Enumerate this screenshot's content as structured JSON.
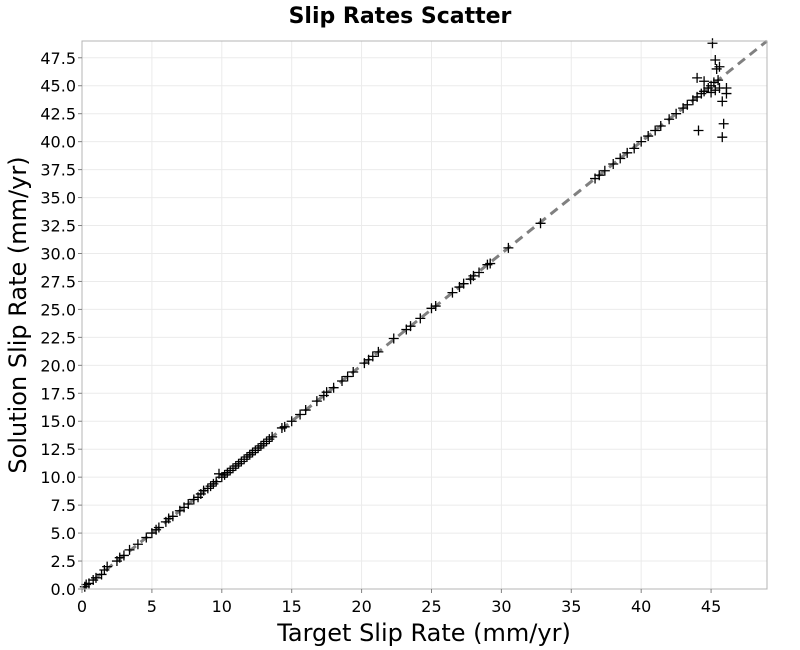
{
  "chart_data": {
    "type": "scatter",
    "title": "Slip Rates Scatter",
    "xlabel": "Target Slip Rate (mm/yr)",
    "ylabel": "Solution Slip Rate (mm/yr)",
    "xlim": [
      0,
      49
    ],
    "ylim": [
      0,
      49
    ],
    "x_ticks": [
      "0",
      "5",
      "10",
      "15",
      "20",
      "25",
      "30",
      "35",
      "40",
      "45"
    ],
    "y_ticks": [
      "0.0",
      "2.5",
      "5.0",
      "7.5",
      "10.0",
      "12.5",
      "15.0",
      "17.5",
      "20.0",
      "22.5",
      "25.0",
      "27.5",
      "30.0",
      "32.5",
      "35.0",
      "37.5",
      "40.0",
      "42.5",
      "45.0",
      "47.5"
    ],
    "grid": true,
    "marker": "+",
    "marker_color": "#000000",
    "reference_line": {
      "style": "dashed",
      "color": "#808080",
      "from": [
        0,
        0
      ],
      "to": [
        49,
        49
      ]
    },
    "series": [
      {
        "points": [
          [
            0.2,
            0.2
          ],
          [
            0.3,
            0.4
          ],
          [
            0.5,
            0.5
          ],
          [
            0.8,
            0.8
          ],
          [
            1.0,
            1.0
          ],
          [
            1.4,
            1.3
          ],
          [
            1.6,
            1.7
          ],
          [
            1.8,
            2.0
          ],
          [
            2.5,
            2.5
          ],
          [
            2.7,
            2.8
          ],
          [
            3.0,
            3.0
          ],
          [
            3.4,
            3.5
          ],
          [
            4.0,
            4.0
          ],
          [
            4.6,
            4.6
          ],
          [
            5.0,
            5.0
          ],
          [
            5.3,
            5.3
          ],
          [
            5.5,
            5.5
          ],
          [
            6.0,
            6.0
          ],
          [
            6.2,
            6.3
          ],
          [
            6.5,
            6.5
          ],
          [
            7.0,
            7.0
          ],
          [
            7.3,
            7.3
          ],
          [
            7.6,
            7.6
          ],
          [
            8.0,
            8.0
          ],
          [
            8.3,
            8.2
          ],
          [
            8.5,
            8.5
          ],
          [
            8.7,
            8.8
          ],
          [
            9.0,
            9.0
          ],
          [
            9.2,
            9.2
          ],
          [
            9.4,
            9.4
          ],
          [
            9.6,
            9.6
          ],
          [
            9.8,
            10.3
          ],
          [
            10.0,
            10.0
          ],
          [
            10.2,
            10.2
          ],
          [
            10.4,
            10.4
          ],
          [
            10.6,
            10.6
          ],
          [
            10.8,
            10.8
          ],
          [
            11.0,
            11.0
          ],
          [
            11.2,
            11.2
          ],
          [
            11.4,
            11.4
          ],
          [
            11.6,
            11.6
          ],
          [
            11.8,
            11.8
          ],
          [
            12.0,
            12.0
          ],
          [
            12.2,
            12.2
          ],
          [
            12.4,
            12.4
          ],
          [
            12.6,
            12.6
          ],
          [
            12.8,
            12.8
          ],
          [
            13.0,
            13.0
          ],
          [
            13.2,
            13.2
          ],
          [
            13.4,
            13.4
          ],
          [
            13.6,
            13.6
          ],
          [
            14.3,
            14.4
          ],
          [
            14.5,
            14.5
          ],
          [
            15.0,
            15.0
          ],
          [
            15.6,
            15.6
          ],
          [
            16.0,
            16.0
          ],
          [
            16.8,
            16.8
          ],
          [
            17.3,
            17.3
          ],
          [
            17.5,
            17.6
          ],
          [
            18.0,
            18.0
          ],
          [
            18.6,
            18.6
          ],
          [
            19.0,
            19.0
          ],
          [
            19.4,
            19.4
          ],
          [
            20.2,
            20.2
          ],
          [
            20.5,
            20.5
          ],
          [
            20.8,
            20.8
          ],
          [
            21.2,
            21.2
          ],
          [
            22.3,
            22.4
          ],
          [
            23.2,
            23.2
          ],
          [
            23.5,
            23.5
          ],
          [
            24.2,
            24.2
          ],
          [
            25.0,
            25.1
          ],
          [
            25.3,
            25.3
          ],
          [
            26.5,
            26.5
          ],
          [
            27.0,
            27.0
          ],
          [
            27.3,
            27.3
          ],
          [
            27.8,
            27.7
          ],
          [
            28.0,
            28.0
          ],
          [
            28.4,
            28.3
          ],
          [
            29.0,
            29.0
          ],
          [
            29.2,
            29.1
          ],
          [
            30.5,
            30.5
          ],
          [
            32.8,
            32.7
          ],
          [
            36.7,
            36.7
          ],
          [
            37.0,
            37.0
          ],
          [
            37.4,
            37.4
          ],
          [
            38.0,
            38.0
          ],
          [
            38.5,
            38.5
          ],
          [
            39.0,
            39.0
          ],
          [
            39.5,
            39.4
          ],
          [
            40.0,
            40.0
          ],
          [
            40.5,
            40.5
          ],
          [
            41.0,
            41.0
          ],
          [
            41.4,
            41.4
          ],
          [
            42.0,
            42.0
          ],
          [
            42.5,
            42.5
          ],
          [
            43.0,
            43.0
          ],
          [
            43.3,
            43.3
          ],
          [
            43.7,
            43.7
          ],
          [
            44.0,
            44.0
          ],
          [
            44.3,
            44.3
          ],
          [
            44.5,
            44.5
          ],
          [
            44.8,
            44.8
          ],
          [
            45.0,
            45.0
          ],
          [
            45.2,
            45.3
          ],
          [
            45.5,
            45.5
          ],
          [
            45.4,
            46.5
          ],
          [
            45.6,
            46.7
          ],
          [
            45.3,
            47.3
          ],
          [
            45.1,
            48.8
          ],
          [
            44.0,
            45.7
          ],
          [
            44.5,
            45.4
          ],
          [
            44.1,
            41.0
          ],
          [
            45.0,
            44.4
          ],
          [
            45.3,
            44.6
          ],
          [
            45.6,
            44.8
          ],
          [
            45.8,
            43.6
          ],
          [
            46.1,
            44.3
          ],
          [
            46.1,
            44.8
          ],
          [
            45.9,
            41.6
          ],
          [
            45.8,
            40.4
          ]
        ]
      }
    ]
  }
}
